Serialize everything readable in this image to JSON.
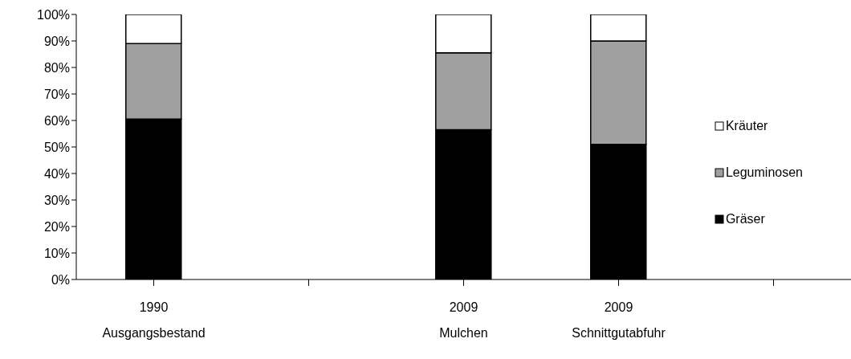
{
  "chart_data": {
    "type": "bar",
    "stacked": true,
    "categories": [
      "1990\nAusgangsbestand",
      null,
      "2009\nMulchen",
      "2009\nSchnittgutabfuhr",
      null
    ],
    "series": [
      {
        "name": "Gräser",
        "color": "#000000",
        "values": [
          60.5,
          null,
          56.5,
          51,
          null
        ]
      },
      {
        "name": "Leguminosen",
        "color": "#a0a0a0",
        "values": [
          28.5,
          null,
          29,
          39,
          null
        ]
      },
      {
        "name": "Kräuter",
        "color": "#ffffff",
        "values": [
          11,
          null,
          14.5,
          10,
          null
        ]
      }
    ],
    "ylim": [
      0,
      100
    ],
    "yticks": [
      {
        "value": 0,
        "label": "0%"
      },
      {
        "value": 10,
        "label": "10%"
      },
      {
        "value": 20,
        "label": "20%"
      },
      {
        "value": 30,
        "label": "30%"
      },
      {
        "value": 40,
        "label": "40%"
      },
      {
        "value": 50,
        "label": "50%"
      },
      {
        "value": 60,
        "label": "60%"
      },
      {
        "value": 70,
        "label": "70%"
      },
      {
        "value": 80,
        "label": "80%"
      },
      {
        "value": 90,
        "label": "90%"
      },
      {
        "value": 100,
        "label": "100%"
      }
    ],
    "grid": false,
    "legend": "right"
  }
}
